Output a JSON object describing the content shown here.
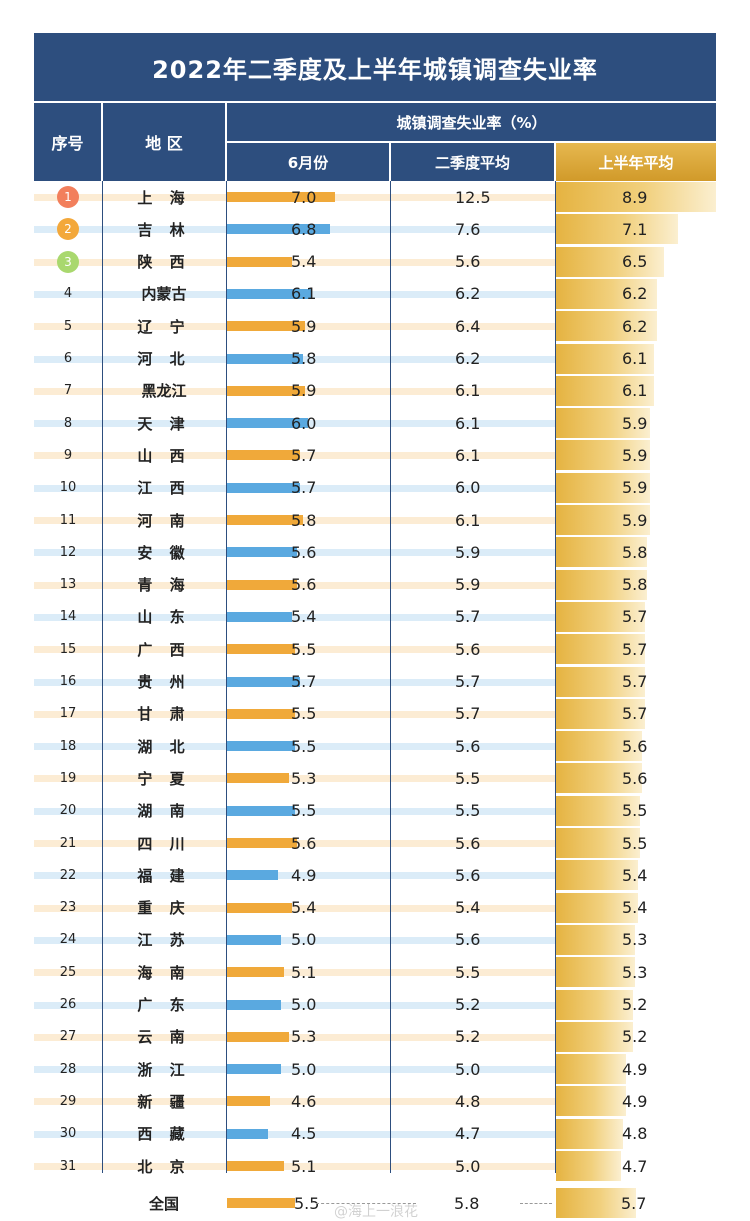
{
  "title": "2022年二季度及上半年城镇调查失业率",
  "headers": {
    "seq": "序号",
    "region": "地 区",
    "group": "城镇调查失业率（%）",
    "june": "6月份",
    "q2": "二季度平均",
    "h1": "上半年平均"
  },
  "colors": {
    "navy": "#2d4e7e",
    "orange": "#f0a93a",
    "blue": "#5aa9e0",
    "gold": "#e5b341",
    "medal1": "#f27f5c",
    "medal2": "#f3a83b",
    "medal3": "#a9d86e"
  },
  "chart_data": {
    "type": "table",
    "rows": [
      {
        "rank": "1",
        "region": "上 海",
        "june": 7.0,
        "q2": 12.5,
        "h1": 8.9
      },
      {
        "rank": "2",
        "region": "吉 林",
        "june": 6.8,
        "q2": 7.6,
        "h1": 7.1
      },
      {
        "rank": "3",
        "region": "陕 西",
        "june": 5.4,
        "q2": 5.6,
        "h1": 6.5
      },
      {
        "rank": "4",
        "region": "内蒙古",
        "june": 6.1,
        "q2": 6.2,
        "h1": 6.2
      },
      {
        "rank": "5",
        "region": "辽 宁",
        "june": 5.9,
        "q2": 6.4,
        "h1": 6.2
      },
      {
        "rank": "6",
        "region": "河 北",
        "june": 5.8,
        "q2": 6.2,
        "h1": 6.1
      },
      {
        "rank": "7",
        "region": "黑龙江",
        "june": 5.9,
        "q2": 6.1,
        "h1": 6.1
      },
      {
        "rank": "8",
        "region": "天 津",
        "june": 6.0,
        "q2": 6.1,
        "h1": 5.9
      },
      {
        "rank": "9",
        "region": "山 西",
        "june": 5.7,
        "q2": 6.1,
        "h1": 5.9
      },
      {
        "rank": "10",
        "region": "江 西",
        "june": 5.7,
        "q2": 6.0,
        "h1": 5.9
      },
      {
        "rank": "11",
        "region": "河 南",
        "june": 5.8,
        "q2": 6.1,
        "h1": 5.9
      },
      {
        "rank": "12",
        "region": "安 徽",
        "june": 5.6,
        "q2": 5.9,
        "h1": 5.8
      },
      {
        "rank": "13",
        "region": "青 海",
        "june": 5.6,
        "q2": 5.9,
        "h1": 5.8
      },
      {
        "rank": "14",
        "region": "山 东",
        "june": 5.4,
        "q2": 5.7,
        "h1": 5.7
      },
      {
        "rank": "15",
        "region": "广 西",
        "june": 5.5,
        "q2": 5.6,
        "h1": 5.7
      },
      {
        "rank": "16",
        "region": "贵 州",
        "june": 5.7,
        "q2": 5.7,
        "h1": 5.7
      },
      {
        "rank": "17",
        "region": "甘 肃",
        "june": 5.5,
        "q2": 5.7,
        "h1": 5.7
      },
      {
        "rank": "18",
        "region": "湖 北",
        "june": 5.5,
        "q2": 5.6,
        "h1": 5.6
      },
      {
        "rank": "19",
        "region": "宁 夏",
        "june": 5.3,
        "q2": 5.5,
        "h1": 5.6
      },
      {
        "rank": "20",
        "region": "湖 南",
        "june": 5.5,
        "q2": 5.5,
        "h1": 5.5
      },
      {
        "rank": "21",
        "region": "四 川",
        "june": 5.6,
        "q2": 5.6,
        "h1": 5.5
      },
      {
        "rank": "22",
        "region": "福 建",
        "june": 4.9,
        "q2": 5.6,
        "h1": 5.4
      },
      {
        "rank": "23",
        "region": "重 庆",
        "june": 5.4,
        "q2": 5.4,
        "h1": 5.4
      },
      {
        "rank": "24",
        "region": "江 苏",
        "june": 5.0,
        "q2": 5.6,
        "h1": 5.3
      },
      {
        "rank": "25",
        "region": "海 南",
        "june": 5.1,
        "q2": 5.5,
        "h1": 5.3
      },
      {
        "rank": "26",
        "region": "广 东",
        "june": 5.0,
        "q2": 5.2,
        "h1": 5.2
      },
      {
        "rank": "27",
        "region": "云 南",
        "june": 5.3,
        "q2": 5.2,
        "h1": 5.2
      },
      {
        "rank": "28",
        "region": "浙 江",
        "june": 5.0,
        "q2": 5.0,
        "h1": 4.9
      },
      {
        "rank": "29",
        "region": "新 疆",
        "june": 4.6,
        "q2": 4.8,
        "h1": 4.9
      },
      {
        "rank": "30",
        "region": "西 藏",
        "june": 4.5,
        "q2": 4.7,
        "h1": 4.8
      },
      {
        "rank": "31",
        "region": "北 京",
        "june": 5.1,
        "q2": 5.0,
        "h1": 4.7
      }
    ],
    "total": {
      "region": "全国",
      "june": 5.5,
      "q2": 5.8,
      "h1": 5.7
    }
  },
  "watermark": "@海上一浪花"
}
